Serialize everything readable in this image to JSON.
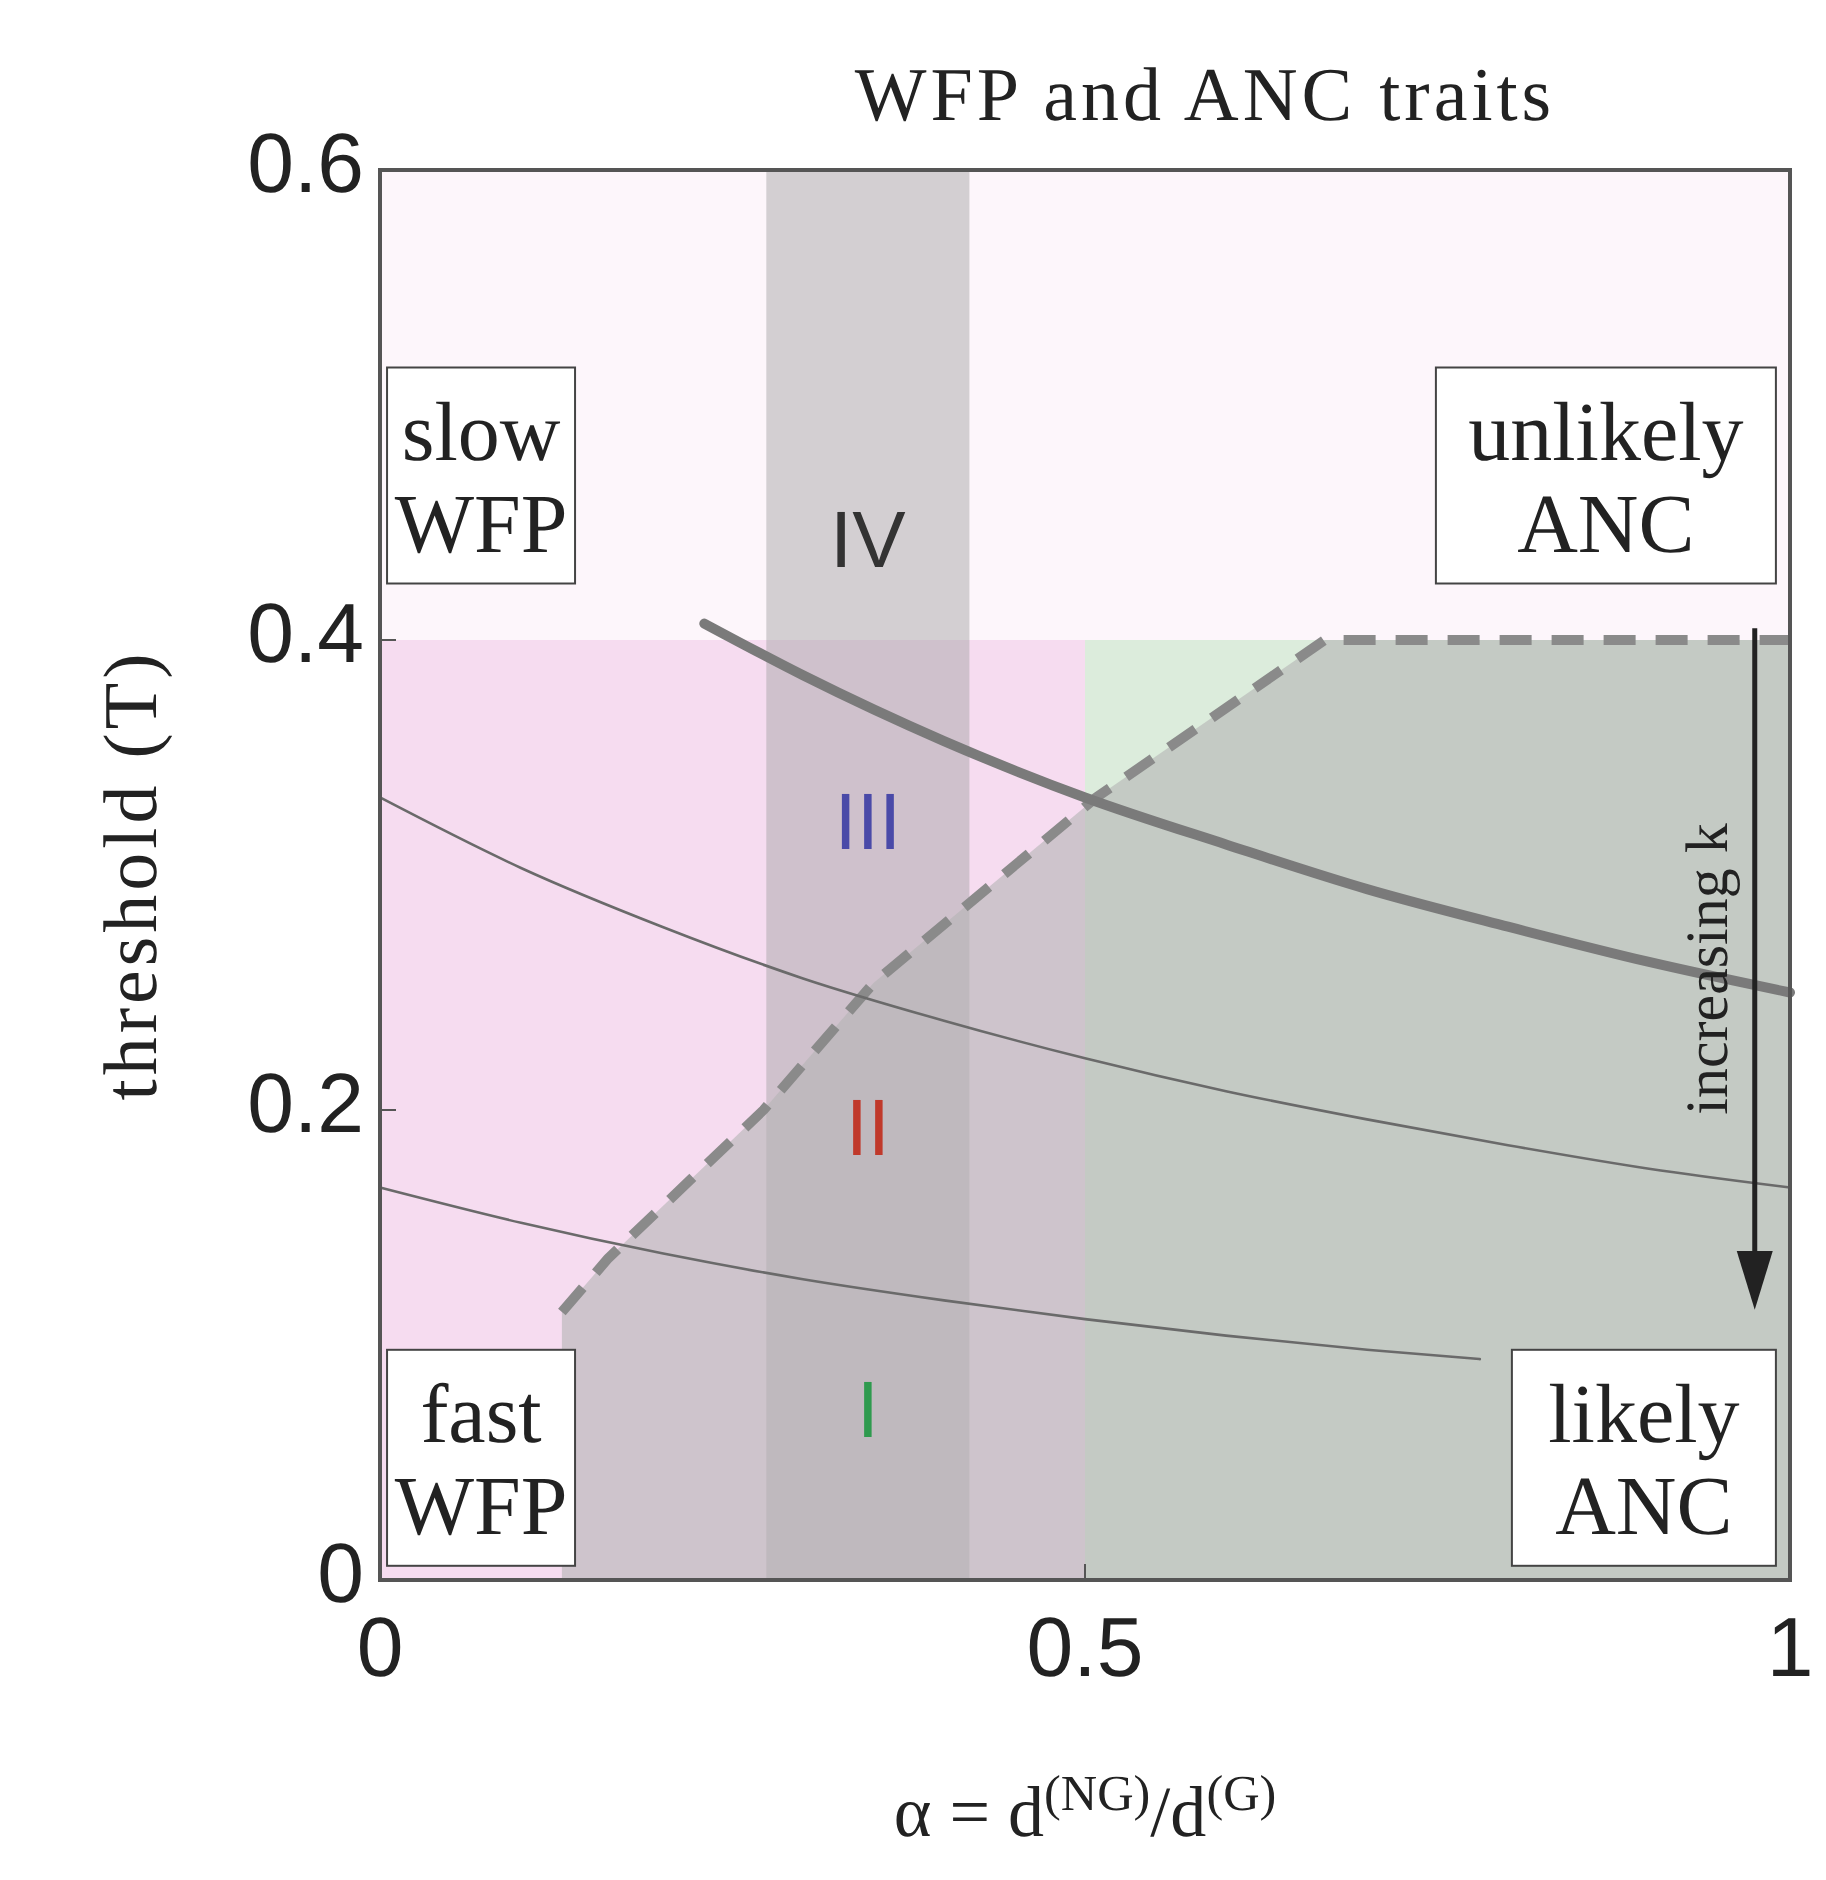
{
  "chart_data": {
    "type": "line",
    "title": "WFP and ANC traits",
    "xlabel": "α = d$^{(NG)}$/d$^{(G)}$",
    "ylabel": "threshold (T)",
    "xlim": [
      0,
      1
    ],
    "ylim": [
      0,
      0.6
    ],
    "xticks": [
      0,
      0.5,
      1
    ],
    "yticks": [
      0,
      0.2,
      0.4,
      0.6
    ],
    "grid": false,
    "bands": [
      {
        "axis": "x",
        "from": 0.274,
        "to": 0.418,
        "color": "#a0a0a0"
      }
    ],
    "series": [
      {
        "type": "area",
        "color": "#f6dcf0",
        "x": [
          0,
          0.5
        ],
        "values": [
          0.4,
          0.4
        ]
      },
      {
        "type": "area",
        "color": "#dcecdc",
        "x": [
          0.5,
          1
        ],
        "values": [
          0.4,
          0.4
        ]
      },
      {
        "type": "area",
        "color": "#b4b4b4",
        "line_style": "dashed",
        "x": [
          0.129,
          0.162,
          0.272,
          0.35,
          0.508,
          0.67,
          1
        ],
        "values": [
          0.114,
          0.137,
          0.2,
          0.254,
          0.333,
          0.4,
          0.4
        ]
      },
      {
        "color": "#7a7a7a",
        "x": [
          0.23,
          0.3,
          0.4,
          0.5,
          0.6,
          0.7,
          0.8,
          0.9,
          1
        ],
        "values": [
          0.407,
          0.385,
          0.357,
          0.333,
          0.313,
          0.294,
          0.278,
          0.263,
          0.25
        ]
      },
      {
        "color": "#6a6a6a",
        "x": [
          0,
          0.1,
          0.2,
          0.3,
          0.4,
          0.5,
          0.6,
          0.7,
          0.8,
          0.9,
          1
        ],
        "values": [
          0.333,
          0.303,
          0.278,
          0.256,
          0.238,
          0.222,
          0.208,
          0.196,
          0.185,
          0.175,
          0.167
        ]
      },
      {
        "color": "#6a6a6a",
        "x": [
          0,
          0.1,
          0.2,
          0.3,
          0.4,
          0.5,
          0.6,
          0.7,
          0.78
        ],
        "values": [
          0.167,
          0.152,
          0.139,
          0.128,
          0.119,
          0.111,
          0.104,
          0.098,
          0.094
        ]
      }
    ],
    "annotations": [
      "slow WFP",
      "unlikely ANC",
      "fast WFP",
      "likely ANC",
      "IV",
      "III",
      "II",
      "I",
      "increasing k"
    ]
  }
}
